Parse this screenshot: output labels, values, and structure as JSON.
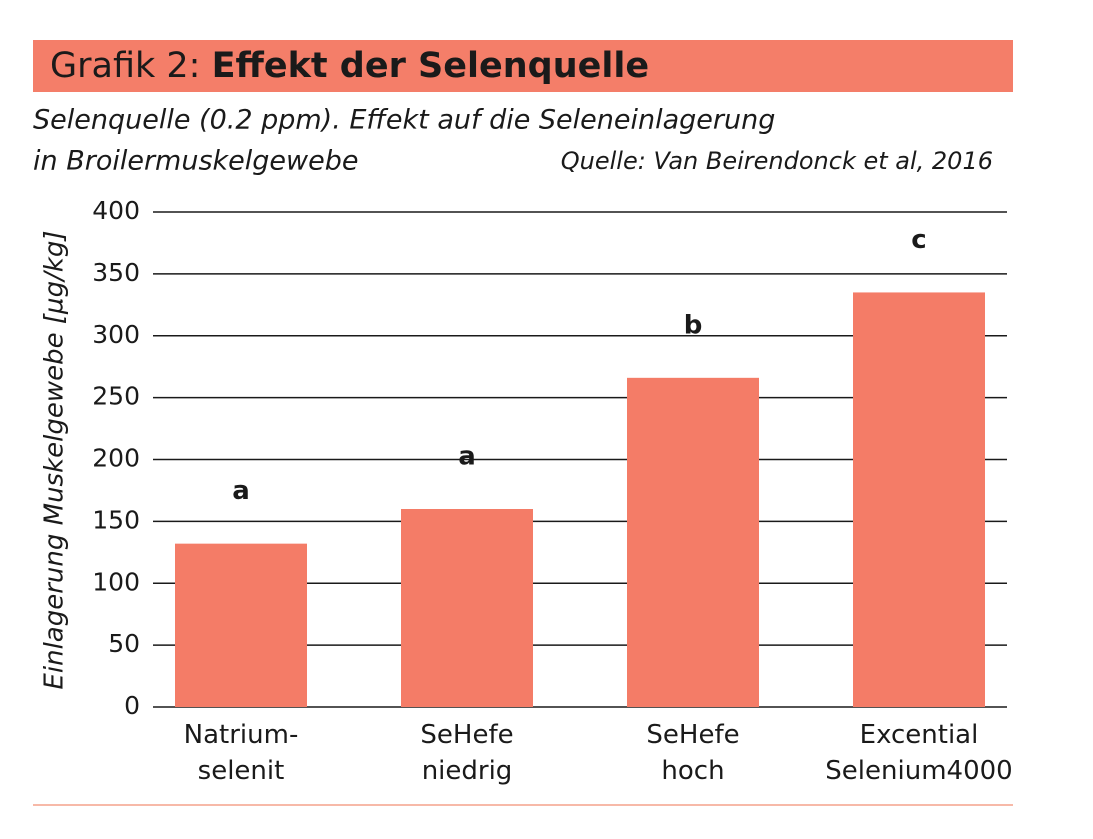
{
  "chart_data": {
    "type": "bar",
    "title_prefix": "Grafik 2:",
    "title": "Effekt der Selenquelle",
    "subtitle": [
      "Selenquelle (0.2 ppm). Effekt auf die Seleneinlagerung",
      "in Broilermuskelgewebe"
    ],
    "source": "Quelle: Van Beirendonck et al, 2016",
    "y_label": "Einlagerung Muskelgewebe  [µg/kg]",
    "categories": [
      [
        "Natrium-",
        "selenit"
      ],
      [
        "SeHefe",
        "niedrig"
      ],
      [
        "SeHefe",
        "hoch"
      ],
      [
        "Excential",
        "Selenium4000"
      ]
    ],
    "values": [
      132,
      160,
      266,
      335
    ],
    "annotations": [
      "a",
      "a",
      "b",
      "c"
    ],
    "color": "#f47c67",
    "ylim": [
      0,
      400
    ],
    "yticks": [
      0,
      50,
      100,
      150,
      200,
      250,
      300,
      350,
      400
    ],
    "grid": true
  }
}
